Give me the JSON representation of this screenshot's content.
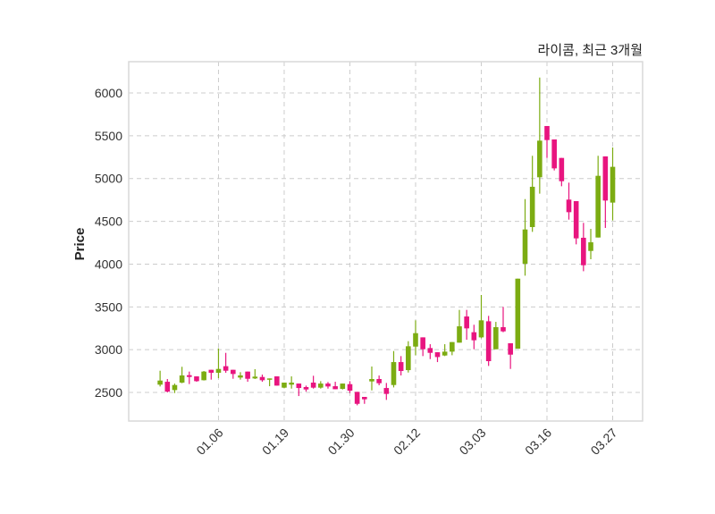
{
  "chart_data": {
    "type": "candlestick",
    "title": "라이콤, 최근 3개월",
    "xlabel": "",
    "ylabel": "Price",
    "ylim": [
      2166,
      6366
    ],
    "xlim": [
      -4.3,
      66.1
    ],
    "grid": true,
    "yticks": [
      2500,
      3000,
      3500,
      4000,
      4500,
      5000,
      5500,
      6000
    ],
    "xticks": [
      {
        "index": 8,
        "label": "01.06"
      },
      {
        "index": 17,
        "label": "01.19"
      },
      {
        "index": 26,
        "label": "01.30"
      },
      {
        "index": 35,
        "label": "02.12"
      },
      {
        "index": 44,
        "label": "03.03"
      },
      {
        "index": 53,
        "label": "03.16"
      },
      {
        "index": 62,
        "label": "03.27"
      }
    ],
    "colors": {
      "up": "#7cac12",
      "down": "#e8157f",
      "grid": "#cccccc",
      "frame": "#d9d9d9"
    },
    "open": [
      2591,
      2625,
      2528,
      2615,
      2702,
      2688,
      2643,
      2765,
      2730,
      2807,
      2765,
      2674,
      2744,
      2664,
      2681,
      2653,
      2688,
      2556,
      2591,
      2604,
      2563,
      2615,
      2556,
      2604,
      2573,
      2542,
      2597,
      2507,
      2448,
      2629,
      2657,
      2552,
      2587,
      2855,
      2761,
      3036,
      3144,
      3019,
      2970,
      2932,
      2977,
      3082,
      3388,
      3204,
      3144,
      3332,
      3005,
      3263,
      3075,
      3012,
      4005,
      4433,
      5015,
      5614,
      5457,
      5241,
      4754,
      4736,
      4308,
      4154,
      4311,
      5259,
      4719
    ],
    "high": [
      2754,
      2657,
      2604,
      2800,
      2744,
      2688,
      2751,
      2765,
      3015,
      2963,
      2765,
      2737,
      2744,
      2772,
      2709,
      2664,
      2688,
      2615,
      2688,
      2604,
      2580,
      2695,
      2632,
      2622,
      2625,
      2604,
      2632,
      2507,
      2448,
      2803,
      2698,
      2611,
      2984,
      2925,
      3099,
      3343,
      3144,
      3064,
      2970,
      3064,
      3089,
      3465,
      3465,
      3291,
      3639,
      3395,
      3325,
      3500,
      3075,
      3830,
      4760,
      5266,
      6181,
      5614,
      5457,
      5241,
      4952,
      4736,
      4482,
      4412,
      5266,
      5259,
      5363
    ],
    "low": [
      2570,
      2500,
      2493,
      2608,
      2598,
      2625,
      2640,
      2650,
      2667,
      2730,
      2660,
      2650,
      2625,
      2657,
      2625,
      2573,
      2580,
      2549,
      2545,
      2458,
      2510,
      2545,
      2545,
      2545,
      2538,
      2535,
      2493,
      2350,
      2367,
      2524,
      2584,
      2413,
      2559,
      2699,
      2733,
      2935,
      2925,
      2890,
      2855,
      2925,
      2935,
      3082,
      3116,
      3005,
      3134,
      2810,
      3005,
      3204,
      2775,
      3012,
      3865,
      4377,
      4823,
      5241,
      5095,
      4910,
      4520,
      4231,
      3917,
      4057,
      4311,
      4423,
      4510
    ],
    "close": [
      2639,
      2510,
      2587,
      2699,
      2681,
      2632,
      2744,
      2730,
      2775,
      2754,
      2716,
      2699,
      2660,
      2685,
      2643,
      2664,
      2580,
      2615,
      2615,
      2552,
      2535,
      2556,
      2604,
      2570,
      2538,
      2604,
      2521,
      2367,
      2420,
      2657,
      2608,
      2483,
      2855,
      2751,
      3040,
      3193,
      3005,
      2963,
      2914,
      2977,
      3089,
      3273,
      3249,
      3110,
      3343,
      2866,
      3263,
      3214,
      2942,
      3830,
      4405,
      4904,
      5443,
      5450,
      5119,
      4969,
      4607,
      4301,
      3987,
      4255,
      5032,
      4743,
      5137
    ]
  }
}
